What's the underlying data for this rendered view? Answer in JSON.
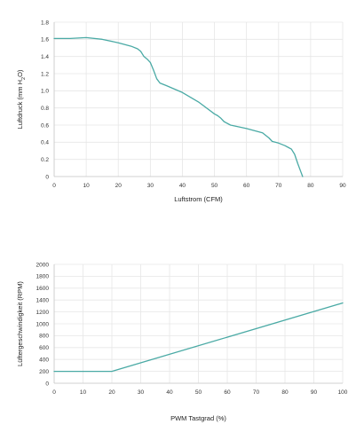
{
  "chart_data": [
    {
      "type": "line",
      "title": "",
      "xlabel": "Luftstrom (CFM)",
      "ylabel_main": "Luftdruck (mm H",
      "ylabel_sub": "2",
      "ylabel_tail": "O)",
      "xlim": [
        0,
        90
      ],
      "ylim": [
        0,
        1.8
      ],
      "x_ticks": [
        0,
        10,
        20,
        30,
        40,
        50,
        60,
        70,
        80,
        90
      ],
      "y_ticks": [
        0,
        0.2,
        0.4,
        0.6,
        0.8,
        1.0,
        1.2,
        1.4,
        1.6,
        1.8
      ],
      "y_tick_labels": [
        "0",
        "0.2",
        "0.4",
        "0.6",
        "0.8",
        "1.0",
        "1.2",
        "1.4",
        "1.6",
        "1.8"
      ],
      "grid": true,
      "series": [
        {
          "color": "#4aaaa5",
          "x": [
            0,
            5,
            10,
            15,
            20,
            24,
            26,
            27,
            28,
            29,
            30,
            31,
            32,
            33,
            35,
            40,
            45,
            50,
            51,
            52,
            53,
            55,
            60,
            65,
            66,
            67,
            68,
            70,
            72,
            73,
            74,
            75,
            76,
            77,
            77.5
          ],
          "y": [
            1.61,
            1.61,
            1.62,
            1.6,
            1.56,
            1.52,
            1.49,
            1.46,
            1.4,
            1.37,
            1.33,
            1.24,
            1.14,
            1.09,
            1.06,
            0.98,
            0.87,
            0.73,
            0.71,
            0.68,
            0.64,
            0.6,
            0.56,
            0.51,
            0.48,
            0.45,
            0.41,
            0.39,
            0.36,
            0.34,
            0.32,
            0.26,
            0.15,
            0.05,
            0.0
          ]
        }
      ]
    },
    {
      "type": "line",
      "title": "",
      "xlabel": "PWM Tastgrad (%)",
      "ylabel": "Lüftergeschwindigkeit (RPM)",
      "xlim": [
        0,
        100
      ],
      "ylim": [
        0,
        2000
      ],
      "x_ticks": [
        0,
        10,
        20,
        30,
        40,
        50,
        60,
        70,
        80,
        90,
        100
      ],
      "y_ticks": [
        0,
        200,
        400,
        600,
        800,
        1000,
        1200,
        1400,
        1600,
        1800,
        2000
      ],
      "y_tick_labels": [
        "0",
        "200",
        "400",
        "600",
        "800",
        "1000",
        "1200",
        "1400",
        "1600",
        "1800",
        "2000"
      ],
      "grid": true,
      "series": [
        {
          "color": "#4aaaa5",
          "x": [
            0,
            20,
            100
          ],
          "y": [
            200,
            200,
            1350
          ]
        }
      ]
    }
  ]
}
